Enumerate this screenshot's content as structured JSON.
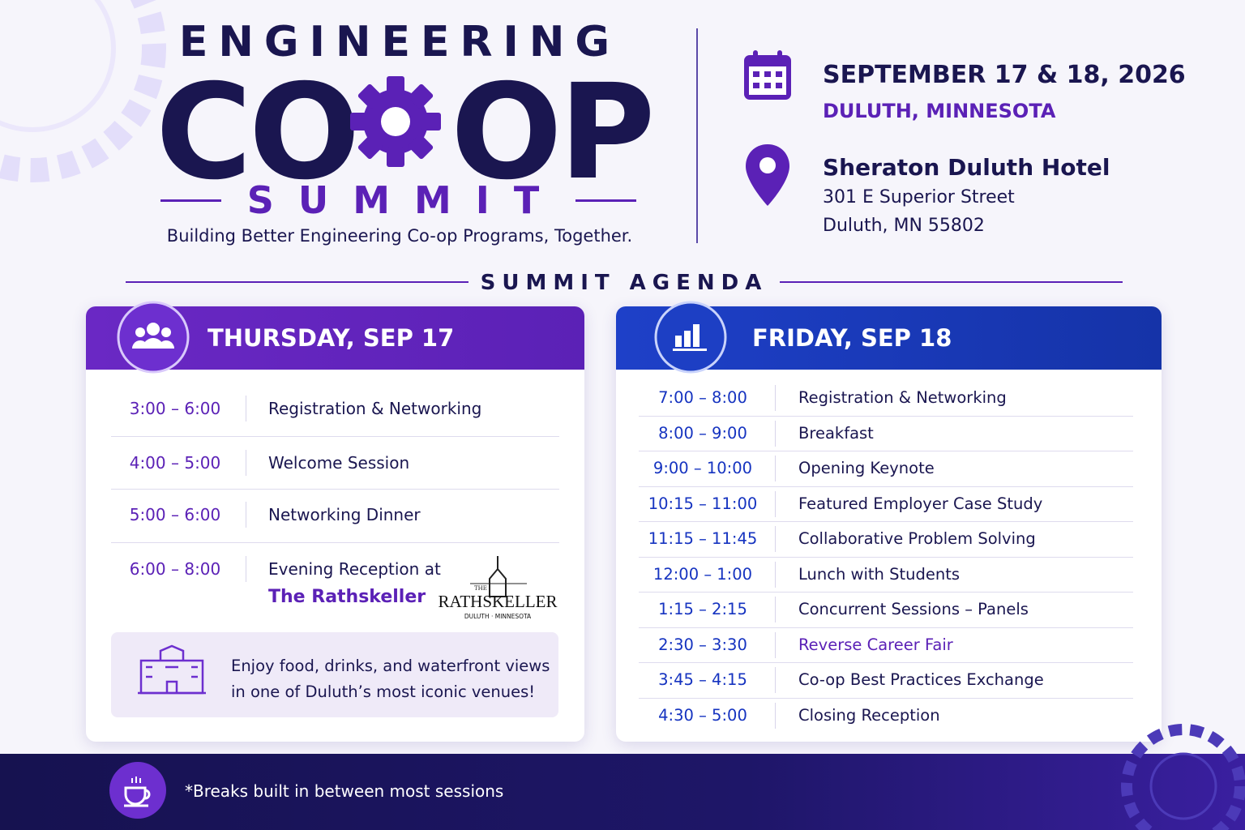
{
  "header": {
    "title_top": "ENGINEERING",
    "title_main_left": "CO",
    "title_main_right": "OP",
    "title_bottom": "SUMMIT",
    "tagline": "Building Better Engineering Co-op Programs, Together."
  },
  "event": {
    "date": "SEPTEMBER 17 & 18, 2026",
    "city": "DULUTH, MINNESOTA"
  },
  "venue": {
    "name": "Sheraton Duluth Hotel",
    "address_lines": [
      "301 E Superior Street",
      "Duluth, MN 55802"
    ]
  },
  "agenda": {
    "title": "SUMMIT AGENDA",
    "days": [
      {
        "title": "THURSDAY, SEP 17",
        "items": [
          {
            "time": "3:00 – 6:00",
            "session": "Registration & Networking"
          },
          {
            "time": "4:00 – 5:00",
            "session": "Welcome Session"
          },
          {
            "time": "5:00 – 6:00",
            "session": "Networking Dinner"
          },
          {
            "time": "6:00 – 8:00",
            "session": "Evening Reception at",
            "venue": "The Rathskeller"
          }
        ],
        "logo": {
          "small": "THE",
          "name": "RATHSKELLER",
          "place": "DULUTH · MINNESOTA"
        },
        "note_lines": [
          "Enjoy food, drinks, and waterfront views",
          "in one of Duluth’s most iconic venues!"
        ]
      },
      {
        "title": "FRIDAY, SEP 18",
        "items": [
          {
            "time": "7:00 – 8:00",
            "session": "Registration & Networking"
          },
          {
            "time": "8:00 – 9:00",
            "session": "Breakfast"
          },
          {
            "time": "9:00 – 10:00",
            "session": "Opening Keynote"
          },
          {
            "time": "10:15 – 11:00",
            "session": "Featured Employer Case Study"
          },
          {
            "time": "11:15 – 11:45",
            "session": "Collaborative Problem Solving"
          },
          {
            "time": "12:00 – 1:00",
            "session": "Lunch with Students"
          },
          {
            "time": "1:15 – 2:15",
            "session": "Concurrent Sessions – Panels"
          },
          {
            "time": "2:30 – 3:30",
            "session": "Reverse Career Fair",
            "highlight": true
          },
          {
            "time": "3:45 – 4:15",
            "session": "Co-op Best Practices Exchange"
          },
          {
            "time": "4:30 – 5:00",
            "session": "Closing Reception"
          }
        ]
      }
    ]
  },
  "footer": {
    "note": "*Breaks built in between most sessions"
  }
}
